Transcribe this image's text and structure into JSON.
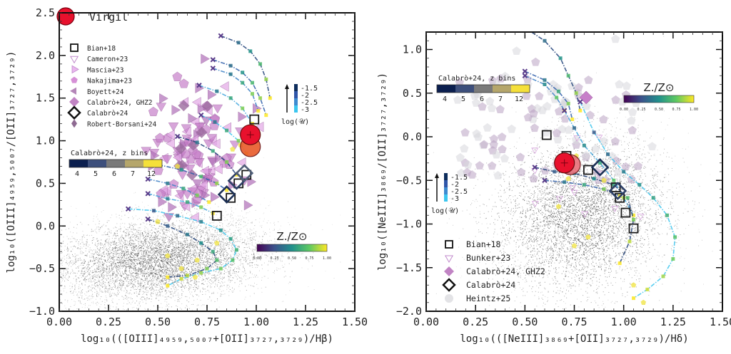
{
  "title_legend": {
    "label": "Virgil",
    "color": "#e8112d"
  },
  "chart_data": [
    {
      "type": "scatter",
      "panel": "left",
      "xlabel": "log10(([OIII]4959,5007 + [OII]3727,3729)/Hβ)",
      "ylabel": "log10([OIII]4959,5007/[OII]3727,3729)",
      "xlim": [
        0.0,
        1.5
      ],
      "ylim": [
        -1.0,
        2.5
      ],
      "xticks": [
        "0.00",
        "0.25",
        "0.50",
        "0.75",
        "1.00",
        "1.25",
        "1.50"
      ],
      "yticks": [
        "−1.0",
        "−0.5",
        "0.0",
        "0.5",
        "1.0",
        "1.5",
        "2.0",
        "2.5"
      ],
      "legend_placement": "top-left",
      "legend": [
        "Bian+18",
        "Cameron+23",
        "Mascia+23",
        "Nakajima+23",
        "Boyett+24",
        "Calabrò+24, GHZ2",
        "Calabrò+24",
        "Robert-Borsani+24"
      ],
      "zbins_colorbar": {
        "title": "Calabrò+24, z bins",
        "labels": [
          "4",
          "5",
          "6",
          "7",
          "12"
        ],
        "colors": [
          "#0b1f4f",
          "#3d4f7c",
          "#7a7a7a",
          "#b5a66b",
          "#f5e03a"
        ]
      },
      "logU_colorbar": {
        "title": "log(𝒰)",
        "labels": [
          "-1.5",
          "-2",
          "-2.5",
          "-3"
        ],
        "colors": [
          "#0d2d5c",
          "#2f55a8",
          "#3d8bd0",
          "#3cc6ef"
        ]
      },
      "Z_colorbar": {
        "title": "Z./Z⊙",
        "labels": [
          "0.00",
          "0.25",
          "0.50",
          "0.75",
          "1.00"
        ]
      },
      "virgil": [
        {
          "x": 0.97,
          "y": 1.07
        },
        {
          "x": 0.97,
          "y": 0.93
        }
      ],
      "bian18": [
        {
          "x": 0.8,
          "y": 0.12
        },
        {
          "x": 0.87,
          "y": 0.33
        },
        {
          "x": 0.91,
          "y": 0.5
        },
        {
          "x": 0.95,
          "y": 0.6
        },
        {
          "x": 0.99,
          "y": 1.25
        }
      ],
      "calabro24": [
        {
          "x": 0.85,
          "y": 0.37
        },
        {
          "x": 0.9,
          "y": 0.53
        },
        {
          "x": 0.94,
          "y": 0.62
        }
      ],
      "tracks": [
        {
          "x": [
            0.82,
            0.91,
            0.97,
            1.02,
            1.05,
            1.07
          ],
          "y": [
            2.23,
            2.15,
            2.05,
            1.9,
            1.72,
            1.5
          ]
        },
        {
          "x": [
            0.78,
            0.87,
            0.93,
            0.98,
            1.02,
            1.05
          ],
          "y": [
            1.95,
            1.88,
            1.8,
            1.68,
            1.5,
            1.3
          ]
        },
        {
          "x": [
            0.78,
            0.87,
            0.93,
            0.98,
            1.01
          ],
          "y": [
            1.85,
            1.78,
            1.68,
            1.55,
            1.35
          ]
        },
        {
          "x": [
            0.71,
            0.8,
            0.87,
            0.93,
            0.98
          ],
          "y": [
            1.65,
            1.58,
            1.5,
            1.38,
            1.2
          ]
        },
        {
          "x": [
            0.72,
            0.79,
            0.85,
            0.91,
            0.95
          ],
          "y": [
            1.3,
            1.22,
            1.12,
            1.0,
            0.85
          ]
        },
        {
          "x": [
            0.6,
            0.7,
            0.78,
            0.85,
            0.9
          ],
          "y": [
            1.05,
            0.98,
            0.88,
            0.75,
            0.6
          ]
        },
        {
          "x": [
            0.38,
            0.5,
            0.62,
            0.72,
            0.8,
            0.85
          ],
          "y": [
            0.75,
            0.72,
            0.66,
            0.58,
            0.5,
            0.42
          ]
        },
        {
          "x": [
            0.45,
            0.55,
            0.63,
            0.7,
            0.76
          ],
          "y": [
            0.55,
            0.5,
            0.44,
            0.36,
            0.28
          ]
        },
        {
          "x": [
            0.45,
            0.55,
            0.65,
            0.72,
            0.78
          ],
          "y": [
            0.38,
            0.32,
            0.28,
            0.22,
            0.15
          ]
        },
        {
          "x": [
            0.35,
            0.48,
            0.6,
            0.72,
            0.82,
            0.87,
            0.9,
            0.88,
            0.82,
            0.72,
            0.62,
            0.55
          ],
          "y": [
            0.2,
            0.18,
            0.12,
            0.05,
            -0.05,
            -0.15,
            -0.28,
            -0.4,
            -0.5,
            -0.55,
            -0.62,
            -0.7
          ]
        },
        {
          "x": [
            0.45,
            0.55,
            0.65,
            0.72,
            0.78,
            0.8,
            0.75,
            0.65,
            0.55
          ],
          "y": [
            0.08,
            0.0,
            -0.1,
            -0.2,
            -0.3,
            -0.4,
            -0.5,
            -0.58,
            -0.6
          ]
        }
      ]
    },
    {
      "type": "scatter",
      "panel": "right",
      "xlabel": "log10(([NeIII]3869 + [OII]3727,3729)/Hδ)",
      "ylabel": "log10([NeIII]3869/[OII]3727,3729)",
      "xlim": [
        0.0,
        1.5
      ],
      "ylim": [
        -2.0,
        1.2
      ],
      "xticks": [
        "0.00",
        "0.25",
        "0.50",
        "0.75",
        "1.00",
        "1.25",
        "1.50"
      ],
      "yticks": [
        "−2.0",
        "−1.5",
        "−1.0",
        "−0.5",
        "0.0",
        "0.5",
        "1.0"
      ],
      "legend_placement": "bottom-left",
      "legend": [
        "Bian+18",
        "Bunker+23",
        "Calabrò+24, GHZ2",
        "Calabrò+24",
        "Heintz+25"
      ],
      "zbins_colorbar": {
        "title": "Calabrò+24, z bins",
        "labels": [
          "4",
          "5",
          "6",
          "7",
          "12"
        ],
        "colors": [
          "#0b1f4f",
          "#3d4f7c",
          "#7a7a7a",
          "#b5a66b",
          "#f5e03a"
        ]
      },
      "logU_colorbar": {
        "title": "log(𝒰)",
        "labels": [
          "-1.5",
          "-2",
          "-2.5",
          "-3"
        ],
        "colors": [
          "#0d2d5c",
          "#2f55a8",
          "#3d8bd0",
          "#3cc6ef"
        ]
      },
      "Z_colorbar": {
        "title": "Z./Z⊙",
        "labels": [
          "0.00",
          "0.25",
          "0.50",
          "0.75",
          "1.00"
        ]
      },
      "virgil": [
        {
          "x": 0.7,
          "y": -0.3
        },
        {
          "x": 0.73,
          "y": -0.32
        }
      ],
      "bian18": [
        {
          "x": 0.61,
          "y": 0.02
        },
        {
          "x": 0.71,
          "y": -0.22
        },
        {
          "x": 0.82,
          "y": -0.38
        },
        {
          "x": 0.96,
          "y": -0.58
        },
        {
          "x": 0.98,
          "y": -0.7
        },
        {
          "x": 1.01,
          "y": -0.87
        },
        {
          "x": 1.05,
          "y": -1.05
        }
      ],
      "calabro24": [
        {
          "x": 0.88,
          "y": -0.35
        },
        {
          "x": 0.97,
          "y": -0.62
        }
      ],
      "tracks": [
        {
          "x": [
            0.5,
            0.6,
            0.68,
            0.72,
            0.76,
            0.78
          ],
          "y": [
            1.25,
            1.1,
            0.9,
            0.7,
            0.5,
            0.3
          ]
        },
        {
          "x": [
            0.5,
            0.6,
            0.67,
            0.72,
            0.74
          ],
          "y": [
            0.75,
            0.65,
            0.52,
            0.38,
            0.2
          ]
        },
        {
          "x": [
            0.5,
            0.6,
            0.66,
            0.7
          ],
          "y": [
            0.7,
            0.6,
            0.45,
            0.3
          ]
        },
        {
          "x": [
            0.7,
            0.75,
            0.8,
            0.88,
            0.95,
            1.0,
            1.05
          ],
          "y": [
            0.3,
            0.1,
            -0.1,
            -0.3,
            -0.5,
            -0.7,
            -0.9
          ]
        },
        {
          "x": [
            0.78,
            0.85,
            0.92,
            1.0,
            1.08,
            1.15,
            1.22,
            1.26,
            1.25,
            1.2,
            1.12,
            1.05
          ],
          "y": [
            0.4,
            0.05,
            -0.2,
            -0.4,
            -0.55,
            -0.7,
            -0.9,
            -1.15,
            -1.4,
            -1.6,
            -1.75,
            -1.85
          ]
        },
        {
          "x": [
            0.55,
            0.65,
            0.75,
            0.85,
            0.95,
            1.02,
            1.05,
            1.03,
            0.98
          ],
          "y": [
            -0.35,
            -0.4,
            -0.42,
            -0.48,
            -0.55,
            -0.7,
            -0.95,
            -1.2,
            -1.45
          ]
        },
        {
          "x": [
            0.6,
            0.7,
            0.8,
            0.9,
            0.98
          ],
          "y": [
            -0.5,
            -0.52,
            -0.55,
            -0.6,
            -0.68
          ]
        }
      ]
    }
  ]
}
